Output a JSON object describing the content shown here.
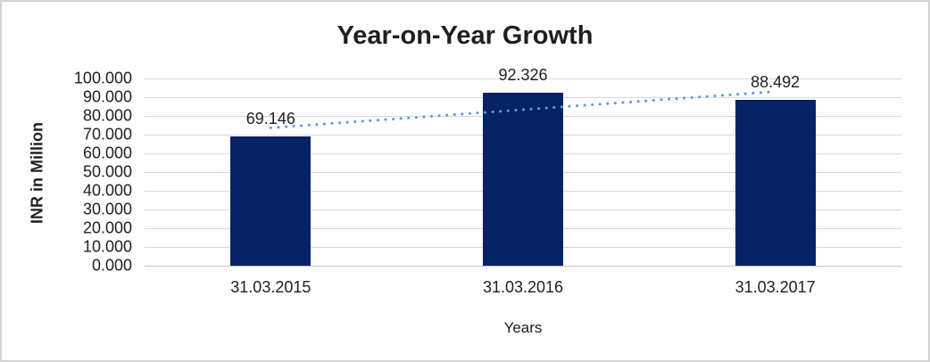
{
  "chart_data": {
    "type": "bar",
    "title": "Year-on-Year Growth",
    "xlabel": "Years",
    "ylabel": "INR in Million",
    "categories": [
      "31.03.2015",
      "31.03.2016",
      "31.03.2017"
    ],
    "values": [
      69.146,
      92.326,
      88.492
    ],
    "data_labels": [
      "69.146",
      "92.326",
      "88.492"
    ],
    "ylim": [
      0,
      100
    ],
    "ytick_labels": [
      "0.000",
      "10.000",
      "20.000",
      "30.000",
      "40.000",
      "50.000",
      "60.000",
      "70.000",
      "80.000",
      "90.000",
      "100.000"
    ],
    "grid": true,
    "legend_position": "none",
    "bar_color": "#052365",
    "trendline": {
      "type": "linear",
      "style": "dotted",
      "color": "#5b9bd5"
    },
    "gridline_color": "#d9d9d9",
    "axis_line_color": "#c3c3c3",
    "text_color": "#1f1f1f",
    "frame_border_color": "#d3d3d3",
    "background_color": "#ffffff"
  }
}
